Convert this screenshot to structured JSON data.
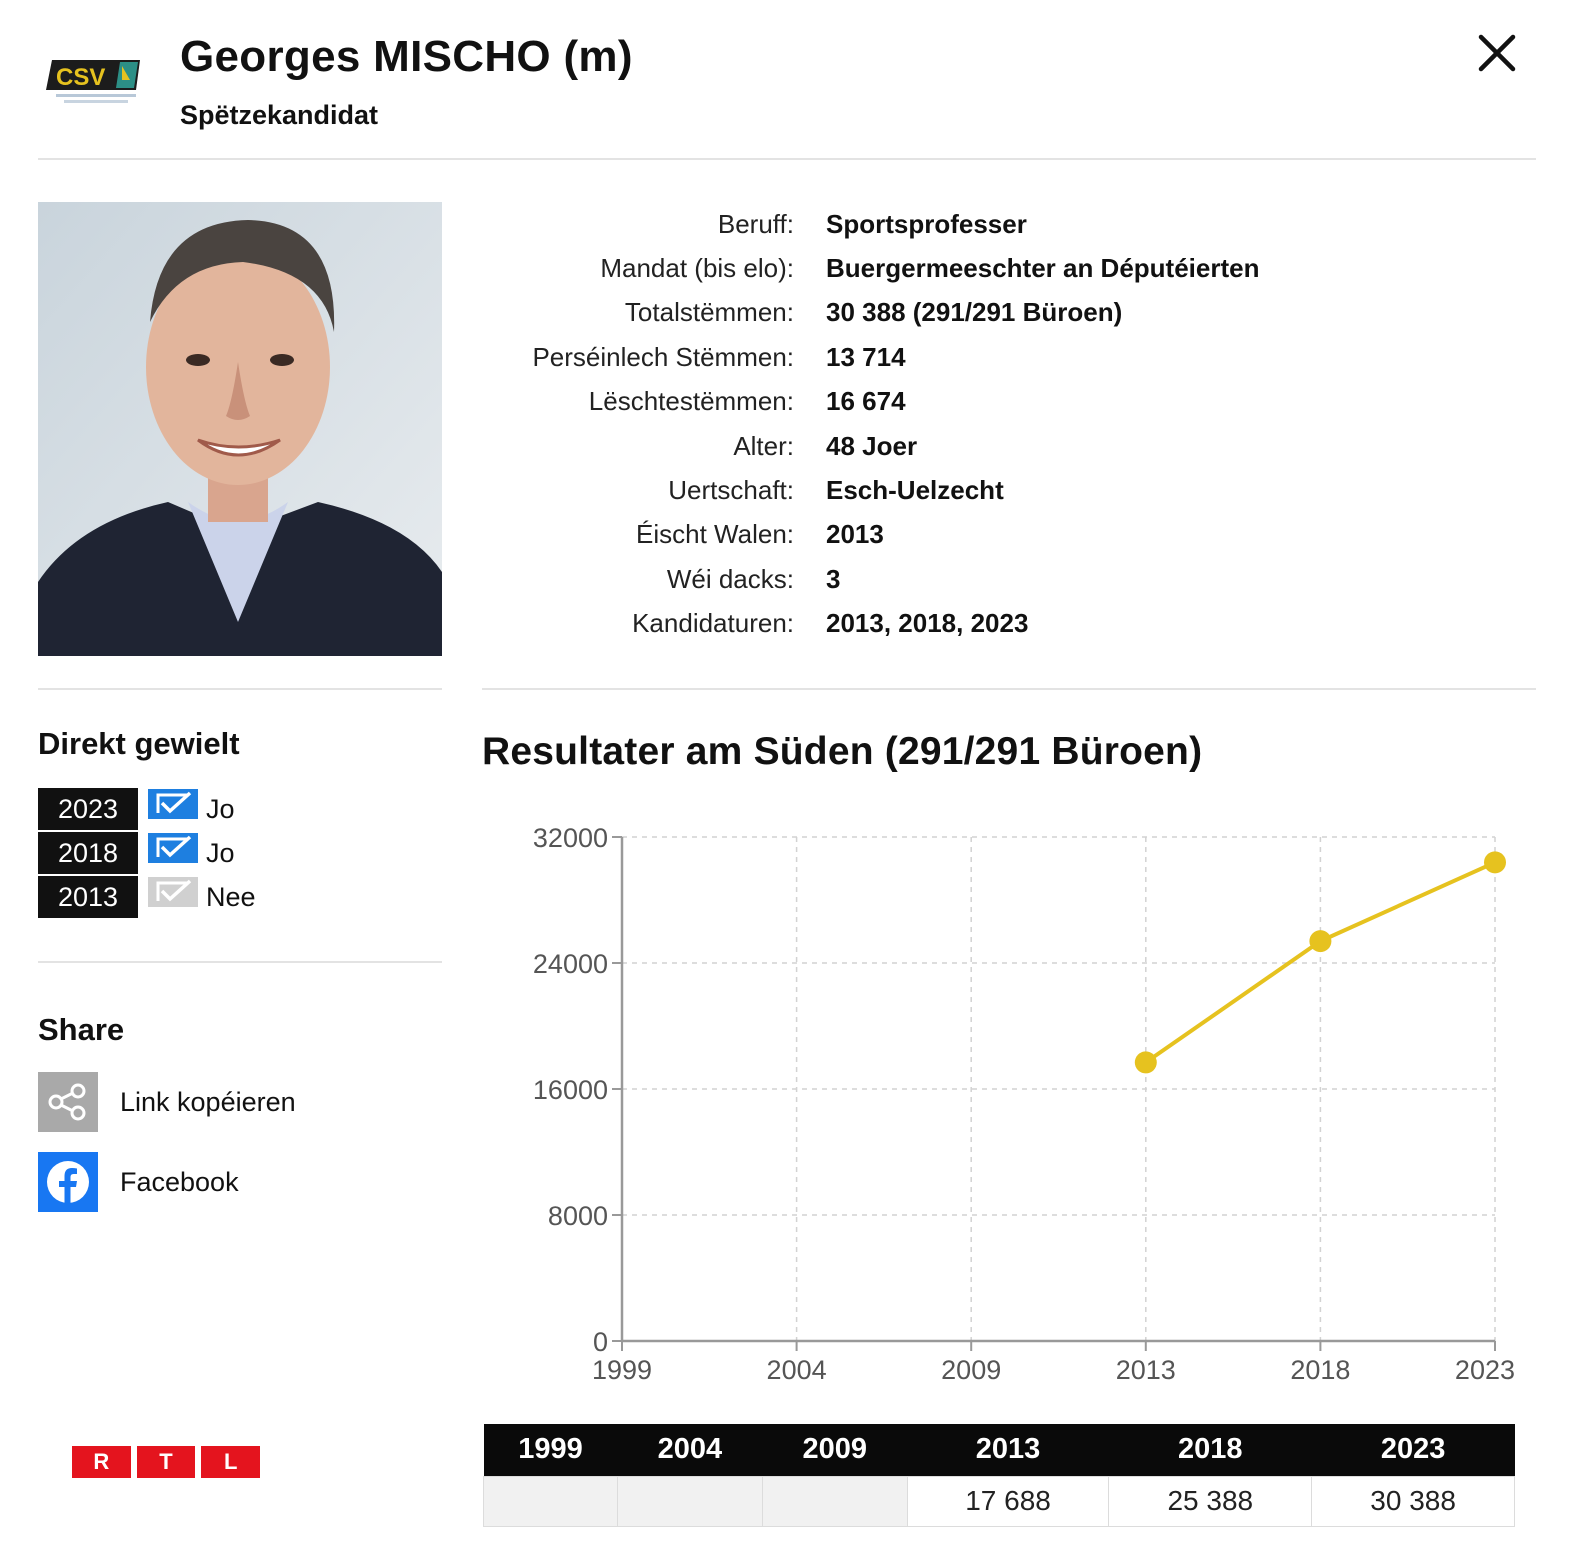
{
  "header": {
    "logo_text": "CSV",
    "name": "Georges MISCHO (m)",
    "role": "Spëtzekandidat"
  },
  "colors": {
    "accent": "#e6c21f",
    "party_teal": "#2c8f86",
    "party_yellow": "#e6c21f",
    "check_blue": "#1e7fe0",
    "check_grey": "#d0d0d0",
    "facebook_blue": "#1877f2",
    "rtl_red": "#e4141e"
  },
  "info": [
    {
      "label": "Beruff:",
      "value": "Sportsprofesser"
    },
    {
      "label": "Mandat (bis elo):",
      "value": "Buergermeeschter an Députéierten"
    },
    {
      "label": "Totalstëmmen:",
      "value": "30 388 (291/291 Büroen)"
    },
    {
      "label": "Perséinlech Stëmmen:",
      "value": "13 714"
    },
    {
      "label": "Lëschtestëmmen:",
      "value": "16 674"
    },
    {
      "label": "Alter:",
      "value": "48 Joer"
    },
    {
      "label": "Uertschaft:",
      "value": "Esch-Uelzecht"
    },
    {
      "label": "Éischt Walen:",
      "value": "2013"
    },
    {
      "label": "Wéi dacks:",
      "value": "3"
    },
    {
      "label": "Kandidaturen:",
      "value": "2013, 2018, 2023"
    }
  ],
  "direkt": {
    "title": "Direkt gewielt",
    "rows": [
      {
        "year": "2023",
        "label": "Jo",
        "checked": true
      },
      {
        "year": "2018",
        "label": "Jo",
        "checked": true
      },
      {
        "year": "2013",
        "label": "Nee",
        "checked": false
      }
    ]
  },
  "share": {
    "title": "Share",
    "link_label": "Link kopéieren",
    "link_icon": "share-icon",
    "facebook_label": "Facebook",
    "facebook_icon": "facebook-icon"
  },
  "brand": {
    "letters": [
      "R",
      "T",
      "L"
    ]
  },
  "chart_title": "Resultater am Süden (291/291 Büroen)",
  "chart_data": {
    "type": "line",
    "x": [
      1999,
      2004,
      2009,
      2013,
      2018,
      2023
    ],
    "x_tick_labels": [
      "1999",
      "2004",
      "2009",
      "2013",
      "2018",
      "2023"
    ],
    "series": [
      {
        "values": [
          null,
          null,
          null,
          17688,
          25388,
          30388
        ],
        "color": "#e6c21f"
      }
    ],
    "y_ticks": [
      0,
      8000,
      16000,
      24000,
      32000
    ],
    "y_tick_labels": [
      "0",
      "8000",
      "16000",
      "24000",
      "32000"
    ],
    "ylim": [
      0,
      32000
    ],
    "grid": true,
    "title": "Resultater am Süden (291/291 Büroen)",
    "xlabel": "",
    "ylabel": ""
  },
  "table": {
    "years": [
      "1999",
      "2004",
      "2009",
      "2013",
      "2018",
      "2023"
    ],
    "values": [
      "",
      "",
      "",
      "17 688",
      "25 388",
      "30 388"
    ]
  }
}
